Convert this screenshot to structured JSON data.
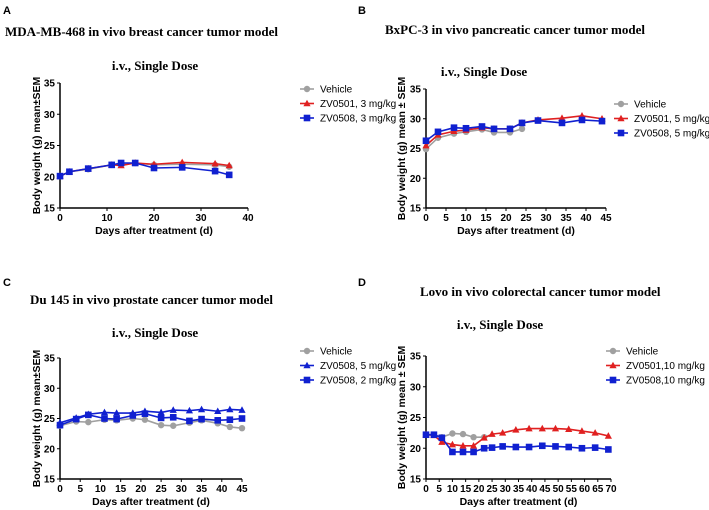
{
  "chart_data": [
    {
      "panel": "A",
      "type": "line",
      "title": "MDA-MB-468 in vivo breast cancer tumor model",
      "subtitle": "i.v., Single Dose",
      "xlabel": "Days after treatment (d)",
      "ylabel": "Body weight (g) mean±SEM",
      "xlim": [
        0,
        40
      ],
      "ylim": [
        15,
        35
      ],
      "xticks": [
        0,
        10,
        20,
        30,
        40
      ],
      "yticks": [
        15,
        20,
        25,
        30,
        35
      ],
      "legend_position": "right",
      "x": [
        0,
        2,
        6,
        11,
        13,
        16,
        20,
        26,
        33,
        36
      ],
      "series": [
        {
          "name": "Vehicle",
          "color": "#a0a0a0",
          "marker": "circle",
          "values": [
            20.1,
            20.8,
            21.2,
            21.9,
            22.0,
            22.2,
            21.9,
            22.0,
            21.9,
            21.6
          ]
        },
        {
          "name": "ZV0501, 3 mg/kg",
          "color": "#e02020",
          "marker": "triangle",
          "values": [
            20.1,
            20.8,
            21.3,
            21.9,
            21.8,
            22.2,
            22.0,
            22.3,
            22.1,
            21.8
          ]
        },
        {
          "name": "ZV0508, 3 mg/kg",
          "color": "#1020d0",
          "marker": "square",
          "values": [
            20.1,
            20.8,
            21.3,
            21.9,
            22.2,
            22.2,
            21.4,
            21.5,
            20.9,
            20.3
          ]
        }
      ]
    },
    {
      "panel": "B",
      "type": "line",
      "title": "BxPC-3 in vivo pancreatic cancer tumor model",
      "subtitle": "i.v., Single Dose",
      "xlabel": "Days after treatment (d)",
      "ylabel": "Body weight (g) mean ± SEM",
      "xlim": [
        0,
        45
      ],
      "ylim": [
        15,
        35
      ],
      "xticks": [
        0,
        5,
        10,
        15,
        20,
        25,
        30,
        35,
        40,
        45
      ],
      "yticks": [
        15,
        20,
        25,
        30,
        35
      ],
      "legend_position": "right",
      "x": [
        0,
        3,
        7,
        10,
        14,
        17,
        21,
        24,
        28,
        34,
        39,
        44
      ],
      "series": [
        {
          "name": "Vehicle",
          "color": "#a0a0a0",
          "marker": "circle",
          "values": [
            24.9,
            26.8,
            27.5,
            27.8,
            28.2,
            27.7,
            27.7,
            28.3,
            null,
            null,
            null,
            null
          ]
        },
        {
          "name": "ZV0501, 5 mg/kg",
          "color": "#e02020",
          "marker": "triangle",
          "values": [
            25.5,
            27.3,
            27.9,
            28.1,
            28.5,
            28.3,
            28.3,
            29.3,
            29.8,
            30.1,
            30.5,
            30.0
          ]
        },
        {
          "name": "ZV0508, 5 mg/kg",
          "color": "#1020d0",
          "marker": "square",
          "values": [
            26.3,
            27.8,
            28.5,
            28.4,
            28.7,
            28.3,
            28.3,
            29.3,
            29.7,
            29.3,
            29.8,
            29.6
          ]
        }
      ]
    },
    {
      "panel": "C",
      "type": "line",
      "title": "Du 145 in vivo prostate cancer tumor model",
      "subtitle": "i.v., Single Dose",
      "xlabel": "Days after treatment (d)",
      "ylabel": "Body weight (g) mean±SEM",
      "xlim": [
        0,
        45
      ],
      "ylim": [
        15,
        35
      ],
      "xticks": [
        0,
        5,
        10,
        15,
        20,
        25,
        30,
        35,
        40,
        45
      ],
      "yticks": [
        15,
        20,
        25,
        30,
        35
      ],
      "legend_position": "right",
      "x": [
        0,
        4,
        7,
        11,
        14,
        18,
        21,
        25,
        28,
        32,
        35,
        39,
        42,
        45
      ],
      "series": [
        {
          "name": "Vehicle",
          "color": "#a0a0a0",
          "marker": "circle",
          "values": [
            23.8,
            24.5,
            24.4,
            24.8,
            24.7,
            25.0,
            24.8,
            23.9,
            23.8,
            24.3,
            24.7,
            24.2,
            23.6,
            23.4
          ]
        },
        {
          "name": "ZV0508, 5 mg/kg",
          "color": "#1020d0",
          "marker": "triangle",
          "values": [
            24.3,
            25.1,
            25.7,
            26.0,
            25.9,
            25.9,
            26.2,
            26.0,
            26.4,
            26.3,
            26.5,
            26.2,
            26.5,
            26.4
          ]
        },
        {
          "name": "ZV0508, 2 mg/kg",
          "color": "#1020d0",
          "marker": "square",
          "values": [
            23.9,
            24.9,
            25.6,
            25.0,
            24.9,
            25.5,
            25.8,
            25.1,
            25.2,
            24.6,
            24.9,
            24.7,
            24.8,
            25.0
          ]
        }
      ]
    },
    {
      "panel": "D",
      "type": "line",
      "title": "Lovo in vivo colorectal cancer tumor model",
      "subtitle": "i.v., Single Dose",
      "xlabel": "Days after treatment (d)",
      "ylabel": "Body weight (g) mean ± SEM",
      "xlim": [
        0,
        70
      ],
      "ylim": [
        15,
        35
      ],
      "xticks": [
        0,
        5,
        10,
        15,
        20,
        25,
        30,
        35,
        40,
        45,
        50,
        55,
        60,
        65,
        70
      ],
      "yticks": [
        15,
        20,
        25,
        30,
        35
      ],
      "legend_position": "right",
      "x": [
        0,
        3,
        6,
        10,
        14,
        18,
        22,
        25,
        29,
        34,
        39,
        44,
        49,
        54,
        59,
        64,
        69
      ],
      "series": [
        {
          "name": "Vehicle",
          "color": "#a0a0a0",
          "marker": "circle",
          "values": [
            22.2,
            22.2,
            21.8,
            22.4,
            22.3,
            21.8,
            21.8,
            null,
            null,
            null,
            null,
            null,
            null,
            null,
            null,
            null,
            null
          ]
        },
        {
          "name": "ZV0501,10 mg/kg",
          "color": "#e02020",
          "marker": "triangle",
          "values": [
            22.2,
            22.1,
            21.0,
            20.6,
            20.4,
            20.4,
            21.7,
            22.3,
            22.5,
            23.0,
            23.2,
            23.2,
            23.2,
            23.1,
            22.8,
            22.5,
            22.0
          ]
        },
        {
          "name": "ZV0508,10 mg/kg",
          "color": "#1020d0",
          "marker": "square",
          "values": [
            22.2,
            22.2,
            21.7,
            19.4,
            19.4,
            19.4,
            20.0,
            20.1,
            20.3,
            20.2,
            20.2,
            20.4,
            20.3,
            20.2,
            20.0,
            20.1,
            19.8
          ]
        }
      ]
    }
  ]
}
